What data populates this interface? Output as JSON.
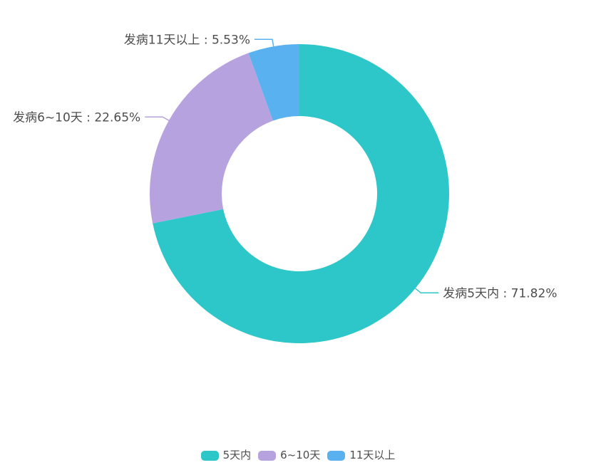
{
  "chart_data": {
    "type": "pie",
    "subtype": "donut",
    "title": "",
    "unit": "%",
    "series": [
      {
        "name": "5天内",
        "callout_label": "发病5天内 : 71.82%",
        "value": 71.82,
        "color": "#2ec7c9"
      },
      {
        "name": "6~10天",
        "callout_label": "发病6~10天 : 22.65%",
        "value": 22.65,
        "color": "#b6a2de"
      },
      {
        "name": "11天以上",
        "callout_label": "发病11天以上 : 5.53%",
        "value": 5.53,
        "color": "#5ab1ef"
      }
    ],
    "legend": {
      "position": "bottom",
      "items": [
        "5天内",
        "6~10天",
        "11天以上"
      ]
    },
    "label_color": "#4d4d4d",
    "background": "#ffffff",
    "layout_hints": {
      "start_angle_deg": 0,
      "clockwise": true,
      "inner_radius_ratio": 0.52,
      "labels": "outside-with-leader-lines",
      "grid": false
    }
  }
}
